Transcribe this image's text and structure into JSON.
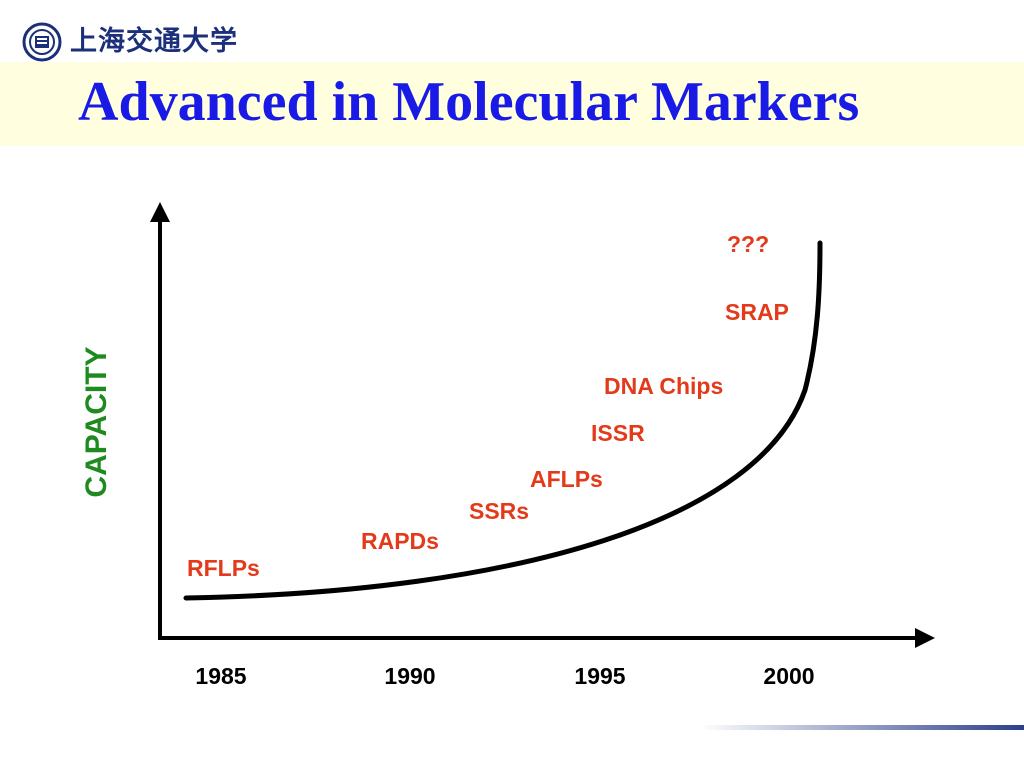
{
  "header": {
    "logo_icon": "university-seal-icon",
    "logo_text": "上海交通大学",
    "title": "Advanced in Molecular Markers"
  },
  "chart_data": {
    "type": "line",
    "title": "Advanced in Molecular Markers",
    "ylabel": "CAPACITY",
    "xlabel": "",
    "x_ticks": [
      "1985",
      "1990",
      "1995",
      "2000"
    ],
    "x_range": [
      1984,
      2003
    ],
    "curve": "exponential-growth",
    "annotations": [
      {
        "text": "RFLPs",
        "year": 1985
      },
      {
        "text": "RAPDs",
        "year": 1989
      },
      {
        "text": "SSRs",
        "year": 1991
      },
      {
        "text": "AFLPs",
        "year": 1993
      },
      {
        "text": "ISSR",
        "year": 1995
      },
      {
        "text": "DNA Chips",
        "year": 1997
      },
      {
        "text": "SRAP",
        "year": 2000
      },
      {
        "text": "???",
        "year": 2001
      }
    ],
    "colors": {
      "labels": "#e23a1a",
      "ylabel": "#1f8a1f",
      "title": "#1a1ae6"
    }
  }
}
